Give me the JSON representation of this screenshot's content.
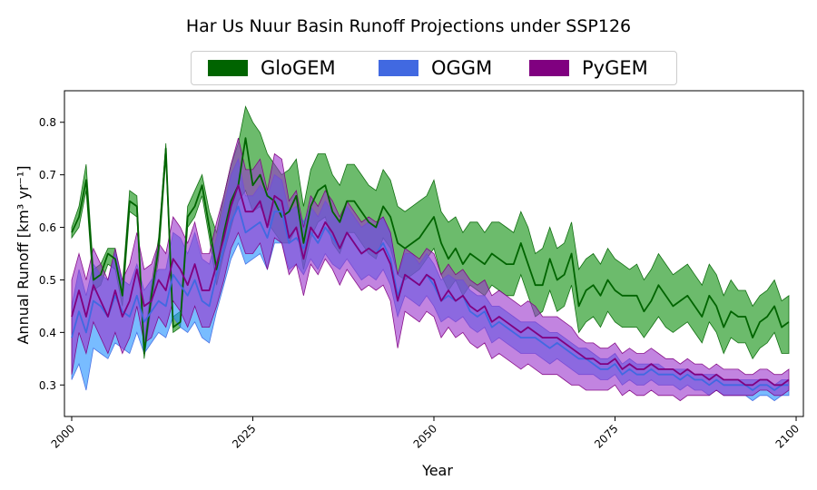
{
  "chart_data": {
    "type": "area",
    "title": "Har Us Nuur Basin Runoff Projections under SSP126",
    "xlabel": "Year",
    "ylabel": "Annual Runoff [km³ yr⁻¹]",
    "xlim": [
      1999,
      2101
    ],
    "ylim": [
      0.24,
      0.86
    ],
    "xticks": [
      2000,
      2025,
      2050,
      2075,
      2100
    ],
    "yticks": [
      0.3,
      0.4,
      0.5,
      0.6,
      0.7,
      0.8
    ],
    "x": [
      2000,
      2001,
      2002,
      2003,
      2004,
      2005,
      2006,
      2007,
      2008,
      2009,
      2010,
      2011,
      2012,
      2013,
      2014,
      2015,
      2016,
      2017,
      2018,
      2019,
      2020,
      2021,
      2022,
      2023,
      2024,
      2025,
      2026,
      2027,
      2028,
      2029,
      2030,
      2031,
      2032,
      2033,
      2034,
      2035,
      2036,
      2037,
      2038,
      2039,
      2040,
      2041,
      2042,
      2043,
      2044,
      2045,
      2046,
      2047,
      2048,
      2049,
      2050,
      2051,
      2052,
      2053,
      2054,
      2055,
      2056,
      2057,
      2058,
      2059,
      2060,
      2061,
      2062,
      2063,
      2064,
      2065,
      2066,
      2067,
      2068,
      2069,
      2070,
      2071,
      2072,
      2073,
      2074,
      2075,
      2076,
      2077,
      2078,
      2079,
      2080,
      2081,
      2082,
      2083,
      2084,
      2085,
      2086,
      2087,
      2088,
      2089,
      2090,
      2091,
      2092,
      2093,
      2094,
      2095,
      2096,
      2097,
      2098,
      2099
    ],
    "series": [
      {
        "name": "GloGEM",
        "color": "#006400",
        "mean": [
          0.59,
          0.62,
          0.69,
          0.5,
          0.51,
          0.55,
          0.54,
          0.47,
          0.65,
          0.64,
          0.36,
          0.47,
          0.56,
          0.75,
          0.41,
          0.42,
          0.62,
          0.64,
          0.68,
          0.6,
          0.52,
          0.59,
          0.65,
          0.68,
          0.77,
          0.68,
          0.7,
          0.66,
          0.65,
          0.62,
          0.63,
          0.66,
          0.57,
          0.64,
          0.67,
          0.68,
          0.63,
          0.61,
          0.65,
          0.65,
          0.63,
          0.61,
          0.6,
          0.64,
          0.62,
          0.57,
          0.56,
          0.57,
          0.58,
          0.6,
          0.62,
          0.57,
          0.54,
          0.56,
          0.53,
          0.55,
          0.54,
          0.53,
          0.55,
          0.54,
          0.53,
          0.53,
          0.57,
          0.53,
          0.49,
          0.49,
          0.54,
          0.5,
          0.51,
          0.55,
          0.45,
          0.48,
          0.49,
          0.47,
          0.5,
          0.48,
          0.47,
          0.47,
          0.47,
          0.44,
          0.46,
          0.49,
          0.47,
          0.45,
          0.46,
          0.47,
          0.45,
          0.43,
          0.47,
          0.45,
          0.41,
          0.44,
          0.43,
          0.43,
          0.39,
          0.42,
          0.43,
          0.45,
          0.41,
          0.42
        ],
        "upper": [
          0.6,
          0.64,
          0.72,
          0.52,
          0.53,
          0.56,
          0.56,
          0.49,
          0.67,
          0.66,
          0.38,
          0.49,
          0.58,
          0.76,
          0.43,
          0.44,
          0.64,
          0.67,
          0.7,
          0.63,
          0.59,
          0.66,
          0.72,
          0.76,
          0.83,
          0.8,
          0.78,
          0.74,
          0.72,
          0.7,
          0.71,
          0.73,
          0.64,
          0.71,
          0.74,
          0.74,
          0.7,
          0.68,
          0.72,
          0.72,
          0.7,
          0.68,
          0.67,
          0.71,
          0.69,
          0.64,
          0.63,
          0.64,
          0.65,
          0.66,
          0.69,
          0.63,
          0.61,
          0.62,
          0.59,
          0.61,
          0.61,
          0.59,
          0.61,
          0.61,
          0.6,
          0.59,
          0.63,
          0.6,
          0.55,
          0.56,
          0.6,
          0.56,
          0.57,
          0.61,
          0.52,
          0.54,
          0.55,
          0.53,
          0.56,
          0.54,
          0.53,
          0.52,
          0.53,
          0.5,
          0.52,
          0.55,
          0.53,
          0.51,
          0.52,
          0.53,
          0.51,
          0.49,
          0.53,
          0.51,
          0.47,
          0.5,
          0.48,
          0.48,
          0.45,
          0.47,
          0.48,
          0.5,
          0.46,
          0.47
        ],
        "lower": [
          0.58,
          0.6,
          0.67,
          0.48,
          0.49,
          0.53,
          0.52,
          0.45,
          0.63,
          0.62,
          0.35,
          0.45,
          0.54,
          0.73,
          0.4,
          0.41,
          0.6,
          0.62,
          0.66,
          0.58,
          0.49,
          0.55,
          0.6,
          0.65,
          0.67,
          0.63,
          0.64,
          0.61,
          0.59,
          0.57,
          0.57,
          0.6,
          0.52,
          0.58,
          0.61,
          0.62,
          0.57,
          0.55,
          0.59,
          0.59,
          0.57,
          0.55,
          0.54,
          0.58,
          0.56,
          0.51,
          0.5,
          0.51,
          0.52,
          0.54,
          0.56,
          0.51,
          0.48,
          0.5,
          0.47,
          0.49,
          0.48,
          0.47,
          0.49,
          0.48,
          0.47,
          0.47,
          0.51,
          0.47,
          0.43,
          0.44,
          0.48,
          0.44,
          0.45,
          0.49,
          0.4,
          0.42,
          0.43,
          0.41,
          0.44,
          0.42,
          0.41,
          0.41,
          0.41,
          0.39,
          0.41,
          0.43,
          0.41,
          0.4,
          0.41,
          0.42,
          0.4,
          0.38,
          0.42,
          0.4,
          0.36,
          0.39,
          0.38,
          0.38,
          0.35,
          0.37,
          0.38,
          0.4,
          0.36,
          0.36
        ]
      },
      {
        "name": "OGGM",
        "color": "#4169E1",
        "mean": [
          0.39,
          0.44,
          0.4,
          0.46,
          0.45,
          0.43,
          0.47,
          0.44,
          0.43,
          0.47,
          0.42,
          0.44,
          0.46,
          0.45,
          0.51,
          0.49,
          0.47,
          0.5,
          0.46,
          0.45,
          0.51,
          0.56,
          0.61,
          0.64,
          0.59,
          0.6,
          0.61,
          0.58,
          0.63,
          0.63,
          0.57,
          0.58,
          0.56,
          0.59,
          0.57,
          0.6,
          0.58,
          0.56,
          0.59,
          0.57,
          0.55,
          0.56,
          0.55,
          0.57,
          0.54,
          0.47,
          0.51,
          0.5,
          0.49,
          0.51,
          0.49,
          0.46,
          0.47,
          0.46,
          0.47,
          0.44,
          0.43,
          0.44,
          0.41,
          0.42,
          0.41,
          0.4,
          0.39,
          0.39,
          0.39,
          0.38,
          0.37,
          0.38,
          0.37,
          0.36,
          0.35,
          0.35,
          0.34,
          0.33,
          0.33,
          0.34,
          0.32,
          0.33,
          0.32,
          0.32,
          0.33,
          0.32,
          0.32,
          0.32,
          0.31,
          0.32,
          0.31,
          0.31,
          0.3,
          0.31,
          0.3,
          0.3,
          0.3,
          0.3,
          0.29,
          0.3,
          0.3,
          0.29,
          0.3,
          0.3
        ],
        "upper": [
          0.45,
          0.52,
          0.47,
          0.53,
          0.51,
          0.5,
          0.55,
          0.5,
          0.49,
          0.53,
          0.48,
          0.5,
          0.52,
          0.52,
          0.59,
          0.58,
          0.55,
          0.59,
          0.54,
          0.53,
          0.58,
          0.64,
          0.7,
          0.73,
          0.66,
          0.66,
          0.68,
          0.66,
          0.7,
          0.69,
          0.63,
          0.64,
          0.61,
          0.64,
          0.62,
          0.65,
          0.63,
          0.61,
          0.64,
          0.62,
          0.6,
          0.61,
          0.6,
          0.62,
          0.59,
          0.51,
          0.55,
          0.55,
          0.53,
          0.55,
          0.53,
          0.5,
          0.51,
          0.5,
          0.5,
          0.48,
          0.47,
          0.47,
          0.45,
          0.45,
          0.44,
          0.43,
          0.42,
          0.42,
          0.42,
          0.41,
          0.4,
          0.4,
          0.39,
          0.38,
          0.37,
          0.37,
          0.36,
          0.35,
          0.35,
          0.36,
          0.34,
          0.35,
          0.34,
          0.34,
          0.34,
          0.34,
          0.33,
          0.33,
          0.33,
          0.33,
          0.32,
          0.32,
          0.32,
          0.32,
          0.31,
          0.31,
          0.31,
          0.31,
          0.31,
          0.31,
          0.31,
          0.3,
          0.31,
          0.31
        ],
        "lower": [
          0.31,
          0.34,
          0.29,
          0.37,
          0.36,
          0.35,
          0.38,
          0.37,
          0.36,
          0.4,
          0.36,
          0.38,
          0.4,
          0.39,
          0.43,
          0.41,
          0.4,
          0.42,
          0.39,
          0.38,
          0.44,
          0.49,
          0.54,
          0.57,
          0.53,
          0.54,
          0.55,
          0.52,
          0.57,
          0.57,
          0.52,
          0.53,
          0.51,
          0.54,
          0.52,
          0.55,
          0.53,
          0.52,
          0.54,
          0.52,
          0.5,
          0.51,
          0.5,
          0.52,
          0.49,
          0.43,
          0.47,
          0.46,
          0.45,
          0.47,
          0.45,
          0.42,
          0.43,
          0.42,
          0.43,
          0.41,
          0.4,
          0.41,
          0.38,
          0.39,
          0.38,
          0.37,
          0.36,
          0.36,
          0.36,
          0.35,
          0.34,
          0.35,
          0.34,
          0.33,
          0.32,
          0.32,
          0.32,
          0.31,
          0.31,
          0.32,
          0.3,
          0.31,
          0.3,
          0.3,
          0.31,
          0.3,
          0.3,
          0.3,
          0.29,
          0.3,
          0.29,
          0.29,
          0.28,
          0.29,
          0.28,
          0.28,
          0.28,
          0.28,
          0.27,
          0.28,
          0.28,
          0.27,
          0.28,
          0.28
        ]
      },
      {
        "name": "PyGEM",
        "color": "#800080",
        "mean": [
          0.43,
          0.48,
          0.43,
          0.49,
          0.46,
          0.43,
          0.48,
          0.43,
          0.46,
          0.52,
          0.45,
          0.46,
          0.5,
          0.48,
          0.54,
          0.52,
          0.49,
          0.53,
          0.48,
          0.48,
          0.53,
          0.58,
          0.64,
          0.68,
          0.63,
          0.63,
          0.65,
          0.6,
          0.66,
          0.65,
          0.58,
          0.6,
          0.54,
          0.6,
          0.58,
          0.61,
          0.59,
          0.56,
          0.59,
          0.57,
          0.55,
          0.56,
          0.55,
          0.56,
          0.53,
          0.46,
          0.51,
          0.5,
          0.49,
          0.51,
          0.5,
          0.46,
          0.48,
          0.46,
          0.47,
          0.45,
          0.44,
          0.45,
          0.42,
          0.43,
          0.42,
          0.41,
          0.4,
          0.41,
          0.4,
          0.39,
          0.39,
          0.39,
          0.38,
          0.37,
          0.36,
          0.35,
          0.35,
          0.34,
          0.34,
          0.35,
          0.33,
          0.34,
          0.33,
          0.33,
          0.34,
          0.33,
          0.33,
          0.33,
          0.32,
          0.33,
          0.32,
          0.32,
          0.31,
          0.32,
          0.31,
          0.31,
          0.31,
          0.3,
          0.3,
          0.31,
          0.31,
          0.3,
          0.3,
          0.31
        ],
        "upper": [
          0.5,
          0.55,
          0.5,
          0.56,
          0.53,
          0.5,
          0.56,
          0.5,
          0.53,
          0.59,
          0.52,
          0.53,
          0.57,
          0.55,
          0.62,
          0.6,
          0.57,
          0.61,
          0.55,
          0.55,
          0.61,
          0.66,
          0.72,
          0.77,
          0.71,
          0.71,
          0.73,
          0.67,
          0.74,
          0.73,
          0.65,
          0.67,
          0.6,
          0.66,
          0.64,
          0.67,
          0.65,
          0.62,
          0.65,
          0.63,
          0.61,
          0.62,
          0.61,
          0.62,
          0.59,
          0.51,
          0.56,
          0.55,
          0.54,
          0.56,
          0.55,
          0.51,
          0.53,
          0.51,
          0.52,
          0.5,
          0.49,
          0.5,
          0.47,
          0.48,
          0.47,
          0.46,
          0.45,
          0.46,
          0.45,
          0.43,
          0.43,
          0.43,
          0.42,
          0.41,
          0.39,
          0.38,
          0.38,
          0.37,
          0.37,
          0.38,
          0.36,
          0.37,
          0.36,
          0.36,
          0.37,
          0.36,
          0.35,
          0.35,
          0.34,
          0.35,
          0.34,
          0.34,
          0.33,
          0.34,
          0.33,
          0.33,
          0.33,
          0.32,
          0.32,
          0.33,
          0.33,
          0.32,
          0.32,
          0.33
        ],
        "lower": [
          0.32,
          0.4,
          0.36,
          0.42,
          0.39,
          0.36,
          0.4,
          0.36,
          0.39,
          0.45,
          0.38,
          0.39,
          0.43,
          0.41,
          0.46,
          0.44,
          0.41,
          0.45,
          0.41,
          0.41,
          0.45,
          0.5,
          0.56,
          0.59,
          0.55,
          0.55,
          0.57,
          0.52,
          0.58,
          0.57,
          0.51,
          0.53,
          0.47,
          0.53,
          0.51,
          0.54,
          0.52,
          0.49,
          0.52,
          0.5,
          0.48,
          0.49,
          0.48,
          0.49,
          0.46,
          0.37,
          0.44,
          0.43,
          0.42,
          0.44,
          0.43,
          0.39,
          0.41,
          0.39,
          0.4,
          0.38,
          0.37,
          0.38,
          0.35,
          0.36,
          0.35,
          0.34,
          0.33,
          0.34,
          0.33,
          0.32,
          0.32,
          0.32,
          0.31,
          0.3,
          0.3,
          0.29,
          0.29,
          0.29,
          0.29,
          0.3,
          0.28,
          0.29,
          0.28,
          0.28,
          0.29,
          0.28,
          0.28,
          0.28,
          0.27,
          0.28,
          0.28,
          0.28,
          0.28,
          0.29,
          0.28,
          0.28,
          0.28,
          0.28,
          0.28,
          0.29,
          0.29,
          0.28,
          0.28,
          0.29
        ]
      }
    ]
  }
}
